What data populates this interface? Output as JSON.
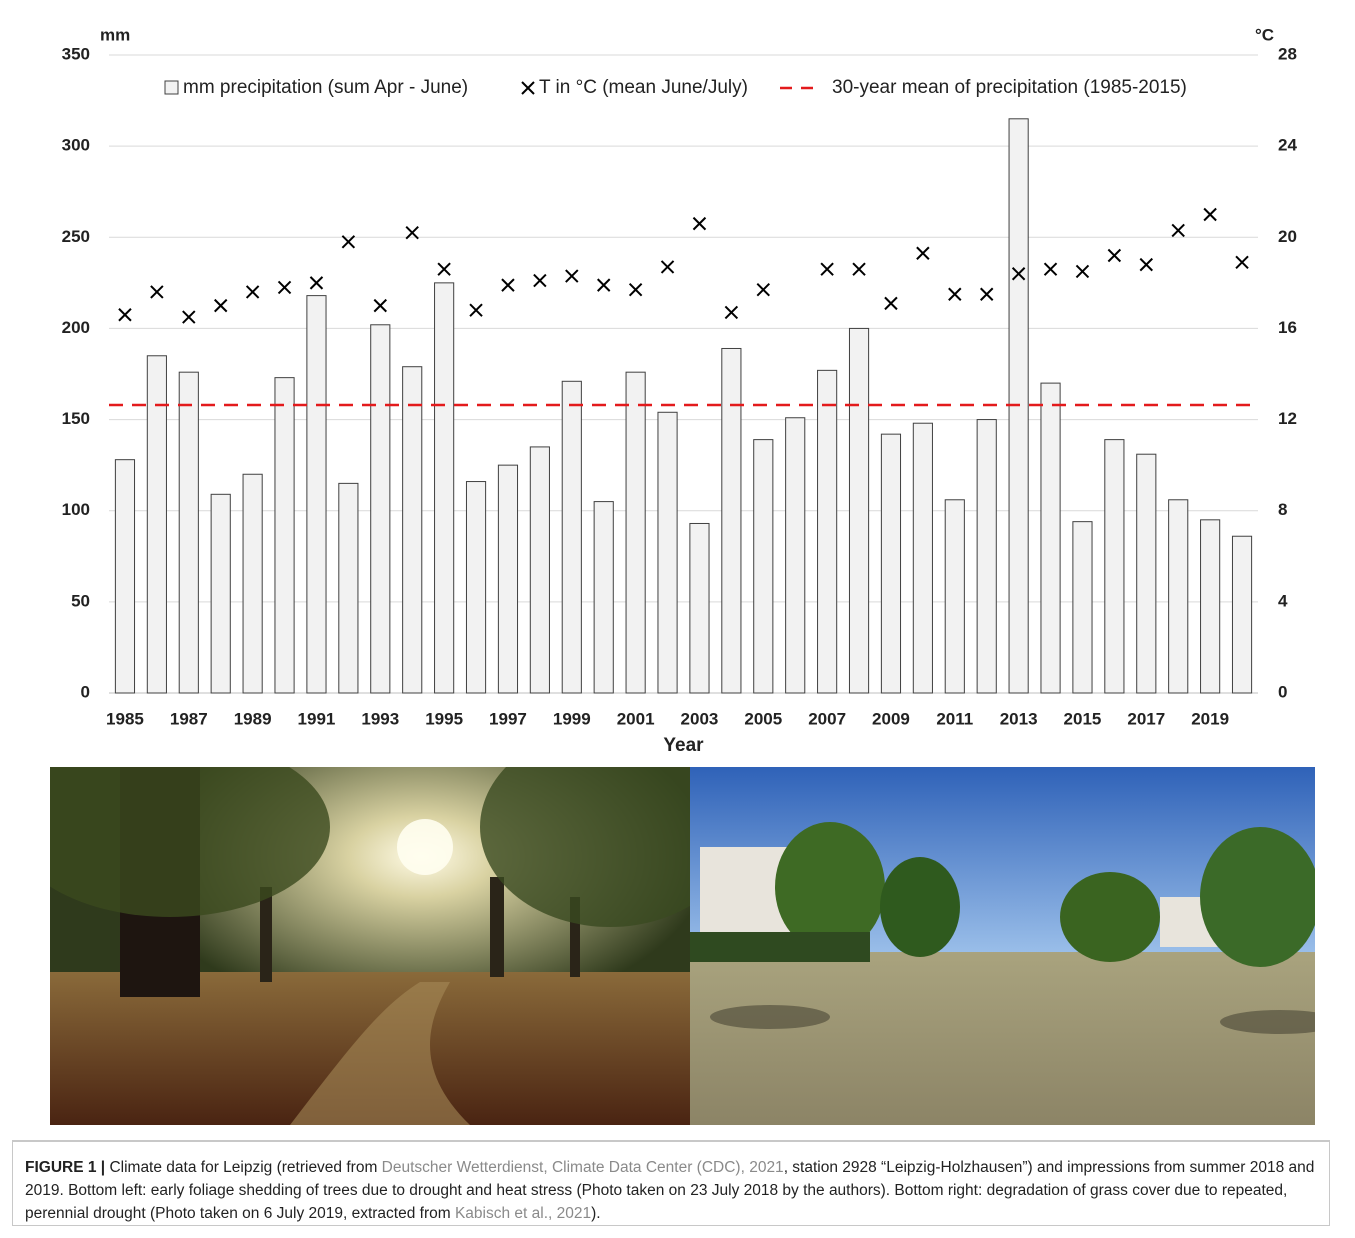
{
  "chart_data": {
    "type": "combo",
    "x_label": "Year",
    "y_label": "mm",
    "y2_label": "°C",
    "categories": [
      "1985",
      null,
      "1987",
      null,
      "1989",
      null,
      "1991",
      null,
      "1993",
      null,
      "1995",
      null,
      "1997",
      null,
      "1999",
      null,
      "2001",
      null,
      "2003",
      null,
      "2005",
      null,
      "2007",
      null,
      "2009",
      null,
      "2011",
      null,
      "2013",
      null,
      "2015",
      null,
      "2017",
      null,
      "2019",
      null
    ],
    "series": [
      {
        "name": "mm precipitation (sum Apr - June)",
        "type": "bar",
        "color": "#f2f2f2",
        "edge_color": "#404040",
        "values": [
          128,
          185,
          176,
          109,
          120,
          173,
          218,
          115,
          202,
          179,
          225,
          116,
          125,
          135,
          171,
          105,
          176,
          154,
          93,
          189,
          139,
          151,
          177,
          200,
          142,
          148,
          106,
          150,
          315,
          170,
          94,
          139,
          131,
          106,
          95,
          86
        ]
      },
      {
        "name": "T in °C (mean June/July)",
        "type": "scatter",
        "marker": "x",
        "axis": "y2",
        "color": "#000000",
        "values": [
          16.6,
          17.6,
          16.5,
          17.0,
          17.6,
          17.8,
          18.0,
          19.8,
          17.0,
          20.2,
          18.6,
          16.8,
          17.9,
          18.1,
          18.3,
          17.9,
          17.7,
          18.7,
          20.6,
          16.7,
          17.7,
          null,
          18.6,
          18.6,
          17.1,
          19.3,
          17.5,
          17.5,
          18.4,
          18.6,
          18.5,
          19.2,
          18.8,
          20.3,
          21.0,
          18.9
        ]
      }
    ],
    "reference_line": {
      "name": "30-year mean of precipitation (1985-2015)",
      "value": 158,
      "color": "#e31a1c",
      "dash": true
    },
    "ylim": [
      0,
      350
    ],
    "yticks": [
      0,
      50,
      100,
      150,
      200,
      250,
      300,
      350
    ],
    "y2lim": [
      0,
      28
    ],
    "y2ticks": [
      0,
      4,
      8,
      12,
      16,
      20,
      24,
      28
    ],
    "grid": true,
    "legend": "top"
  },
  "caption": {
    "label": "FIGURE 1 |",
    "parts": [
      " Climate data for Leipzig (retrieved from ",
      "Deutscher Wetterdienst, Climate Data Center (CDC), 2021",
      ", station 2928 “Leipzig-Holzhausen”) and impressions from summer 2018 and 2019. Bottom left: early foliage shedding of trees due to drought and heat stress (Photo taken on 23 July 2018 by the authors). Bottom right: degradation of grass cover due to repeated, perennial drought (Photo taken on 6 July 2019, extracted from ",
      "Kabisch et al., 2021",
      ")."
    ]
  }
}
